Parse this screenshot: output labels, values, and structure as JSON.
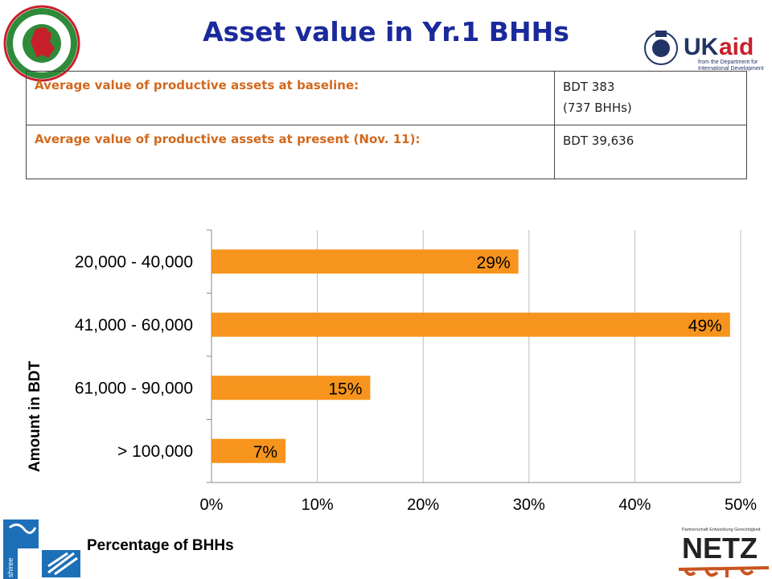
{
  "title": "Asset value in Yr.1 BHHs",
  "table": {
    "rows": [
      {
        "label": "Average value of productive assets at baseline:",
        "value_lines": [
          "BDT 383",
          "(737 BHHs)"
        ]
      },
      {
        "label": "Average value of productive assets at present (Nov. 11):",
        "value_lines": [
          "BDT 39,636"
        ]
      }
    ]
  },
  "logos": {
    "ukaid_word_uk": "UK",
    "ukaid_word_aid": "aid",
    "ukaid_tagline_1": "from the Department for",
    "ukaid_tagline_2": "International Development",
    "netz_tagline": "Partnerschaft Entwicklung Gerechtigkeit",
    "netz_word": "NETZ",
    "shiree_word": "shiree"
  },
  "chart_data": {
    "type": "bar",
    "orientation": "horizontal",
    "categories": [
      "20,000 - 40,000",
      "41,000 - 60,000",
      "61,000 - 90,000",
      "> 100,000"
    ],
    "values": [
      29,
      49,
      15,
      7
    ],
    "data_labels": [
      "29%",
      "49%",
      "15%",
      "7%"
    ],
    "xlabel": "Percentage of BHHs",
    "ylabel": "Amount in BDT",
    "xlim": [
      0,
      50
    ],
    "xticks": [
      "0%",
      "10%",
      "20%",
      "30%",
      "40%",
      "50%"
    ],
    "grid": true,
    "bar_color": "#f7941d"
  },
  "colors": {
    "title": "#1a2a9c",
    "table_label": "#d2691e",
    "bar": "#f7941d",
    "grid": "#bbbbbb"
  }
}
